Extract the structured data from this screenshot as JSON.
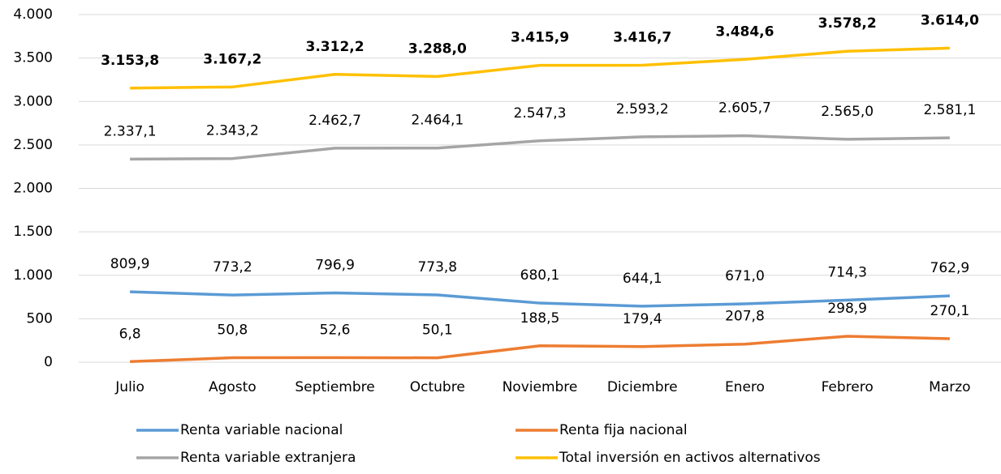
{
  "chart_data": {
    "type": "line",
    "categories": [
      "Julio",
      "Agosto",
      "Septiembre",
      "Octubre",
      "Noviembre",
      "Diciembre",
      "Enero",
      "Febrero",
      "Marzo"
    ],
    "series": [
      {
        "name": "Renta variable nacional",
        "color": "#5b9bd5",
        "values": [
          809.9,
          773.2,
          796.9,
          773.8,
          680.1,
          644.1,
          671.0,
          714.3,
          762.9
        ],
        "value_labels": [
          "809,9",
          "773,2",
          "796,9",
          "773,8",
          "680,1",
          "644,1",
          "671,0",
          "714,3",
          "762,9"
        ]
      },
      {
        "name": "Renta fija nacional",
        "color": "#ed7d31",
        "values": [
          6.8,
          50.8,
          52.6,
          50.1,
          188.5,
          179.4,
          207.8,
          298.9,
          270.1
        ],
        "value_labels": [
          "6,8",
          "50,8",
          "52,6",
          "50,1",
          "188,5",
          "179,4",
          "207,8",
          "298,9",
          "270,1"
        ]
      },
      {
        "name": "Renta variable extranjera",
        "color": "#a5a5a5",
        "values": [
          2337.1,
          2343.2,
          2462.7,
          2464.1,
          2547.3,
          2593.2,
          2605.7,
          2565.0,
          2581.1
        ],
        "value_labels": [
          "2.337,1",
          "2.343,2",
          "2.462,7",
          "2.464,1",
          "2.547,3",
          "2.593,2",
          "2.605,7",
          "2.565,0",
          "2.581,1"
        ]
      },
      {
        "name": "Total inversión en activos alternativos",
        "color": "#ffc000",
        "bold_labels": true,
        "values": [
          3153.8,
          3167.2,
          3312.2,
          3288.0,
          3415.9,
          3416.7,
          3484.6,
          3578.2,
          3614.0
        ],
        "value_labels": [
          "3.153,8",
          "3.167,2",
          "3.312,2",
          "3.288,0",
          "3.415,9",
          "3.416,7",
          "3.484,6",
          "3.578,2",
          "3.614,0"
        ]
      }
    ],
    "ylim": [
      0,
      4000
    ],
    "yticks": [
      0,
      500,
      {
        "value": 1000,
        "label": "1.000"
      },
      {
        "value": 1500,
        "label": "1.500"
      },
      {
        "value": 2000,
        "label": "2.000"
      },
      {
        "value": 2500,
        "label": "2.500"
      },
      {
        "value": 3000,
        "label": "3.000"
      },
      {
        "value": 3500,
        "label": "3.500"
      },
      {
        "value": 4000,
        "label": "4.000"
      }
    ],
    "grid": true,
    "legend": "bottom"
  }
}
